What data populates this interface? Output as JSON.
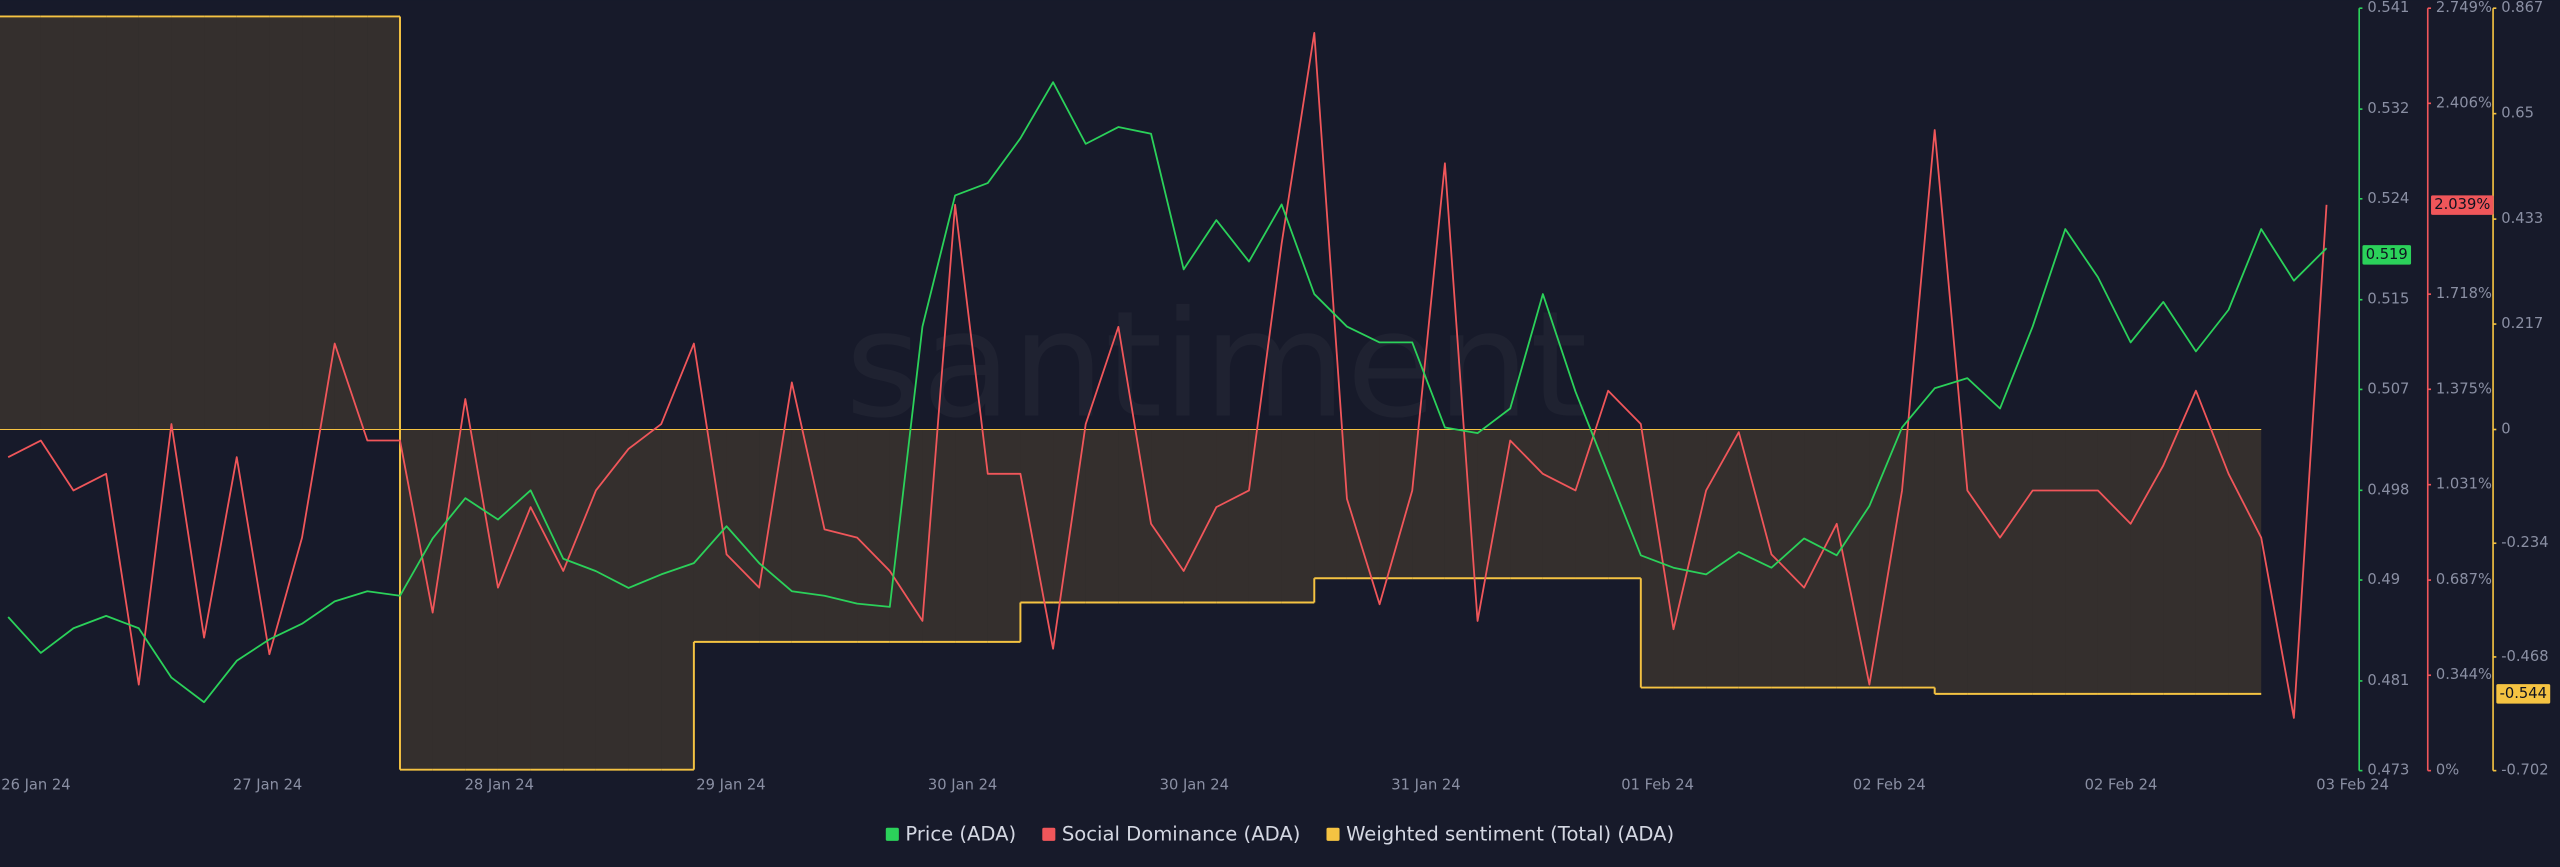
{
  "chart_data": {
    "type": "line",
    "watermark": "santiment",
    "x_labels": [
      "26 Jan 24",
      "27 Jan 24",
      "28 Jan 24",
      "29 Jan 24",
      "30 Jan 24",
      "30 Jan 24",
      "31 Jan 24",
      "01 Feb 24",
      "02 Feb 24",
      "02 Feb 24",
      "03 Feb 24"
    ],
    "ylim": [
      0.473,
      0.541
    ],
    "yticks": [
      0.473,
      0.481,
      0.49,
      0.498,
      0.507,
      0.515,
      0.524,
      0.532,
      0.541
    ],
    "y2lim": [
      0,
      2.749
    ],
    "y2ticks": [
      {
        "value": 0,
        "label": "0%"
      },
      {
        "value": 0.344,
        "label": "0.344%"
      },
      {
        "value": 0.687,
        "label": "0.687%"
      },
      {
        "value": 1.031,
        "label": "1.031%"
      },
      {
        "value": 1.375,
        "label": "1.375%"
      },
      {
        "value": 1.718,
        "label": "1.718%"
      },
      {
        "value": 2.406,
        "label": "2.406%"
      },
      {
        "value": 2.749,
        "label": "2.749%"
      }
    ],
    "y3lim": [
      -0.702,
      0.867
    ],
    "y3ticks": [
      -0.702,
      -0.468,
      -0.234,
      0,
      0.217,
      0.433,
      0.65,
      0.867
    ],
    "series": [
      {
        "name": "Price (ADA)",
        "color": "#2bd15a",
        "axis": "y",
        "style": "line",
        "current": 0.519,
        "values": [
          0.4867,
          0.4835,
          0.4857,
          0.4868,
          0.4857,
          0.4813,
          0.4791,
          0.4828,
          0.4847,
          0.4861,
          0.4881,
          0.489,
          0.4886,
          0.4937,
          0.4973,
          0.4954,
          0.498,
          0.4919,
          0.4908,
          0.4893,
          0.4905,
          0.4915,
          0.4948,
          0.4915,
          0.489,
          0.4886,
          0.4879,
          0.4876,
          0.5126,
          0.5243,
          0.5254,
          0.5294,
          0.5344,
          0.5289,
          0.5304,
          0.5298,
          0.5177,
          0.5221,
          0.5184,
          0.5235,
          0.5155,
          0.5126,
          0.5112,
          0.5112,
          0.5036,
          0.5031,
          0.5053,
          0.5155,
          0.5068,
          0.4995,
          0.4922,
          0.4911,
          0.4905,
          0.4925,
          0.4911,
          0.4937,
          0.4922,
          0.4966,
          0.5036,
          0.5071,
          0.508,
          0.5053,
          0.5126,
          0.5213,
          0.517,
          0.5112,
          0.5148,
          0.5104,
          0.5141,
          0.5213,
          0.5167,
          0.5196
        ]
      },
      {
        "name": "Social Dominance (ADA)",
        "color": "#f0565a",
        "axis": "y2",
        "style": "line",
        "current": 2.039,
        "current_label": "2.039%",
        "values": [
          1.13,
          1.19,
          1.01,
          1.07,
          0.31,
          1.25,
          0.48,
          1.13,
          0.42,
          0.84,
          1.54,
          1.19,
          1.19,
          0.57,
          1.34,
          0.66,
          0.95,
          0.72,
          1.01,
          1.16,
          1.25,
          1.54,
          0.78,
          0.66,
          1.4,
          0.87,
          0.84,
          0.72,
          0.54,
          2.04,
          1.07,
          1.07,
          0.44,
          1.25,
          1.6,
          0.89,
          0.72,
          0.95,
          1.01,
          1.9,
          2.66,
          0.98,
          0.6,
          1.01,
          2.19,
          0.54,
          1.19,
          1.07,
          1.01,
          1.37,
          1.25,
          0.51,
          1.01,
          1.22,
          0.78,
          0.66,
          0.89,
          0.31,
          1.01,
          2.31,
          1.01,
          0.84,
          1.01,
          1.01,
          1.01,
          0.89,
          1.1,
          1.37,
          1.07,
          0.84,
          0.19,
          2.04
        ]
      },
      {
        "name": "Weighted sentiment (Total) (ADA)",
        "color": "#f5c342",
        "axis": "y3",
        "style": "step-area",
        "current": -0.544,
        "values": [
          0.85,
          0.85,
          0.85,
          0.85,
          0.85,
          0.85,
          0.85,
          0.85,
          0.85,
          0.85,
          0.85,
          0.85,
          -0.7,
          -0.7,
          -0.7,
          -0.7,
          -0.7,
          -0.7,
          -0.7,
          -0.7,
          -0.7,
          -0.437,
          -0.437,
          -0.437,
          -0.437,
          -0.437,
          -0.437,
          -0.437,
          -0.437,
          -0.437,
          -0.437,
          -0.356,
          -0.356,
          -0.356,
          -0.356,
          -0.356,
          -0.356,
          -0.356,
          -0.356,
          -0.356,
          -0.306,
          -0.306,
          -0.306,
          -0.306,
          -0.306,
          -0.306,
          -0.306,
          -0.306,
          -0.306,
          -0.306,
          -0.531,
          -0.531,
          -0.531,
          -0.531,
          -0.531,
          -0.531,
          -0.531,
          -0.531,
          -0.531,
          -0.544,
          -0.544,
          -0.544,
          -0.544,
          -0.544,
          -0.544,
          -0.544,
          -0.544,
          -0.544,
          -0.544,
          null,
          null,
          null
        ]
      }
    ]
  }
}
